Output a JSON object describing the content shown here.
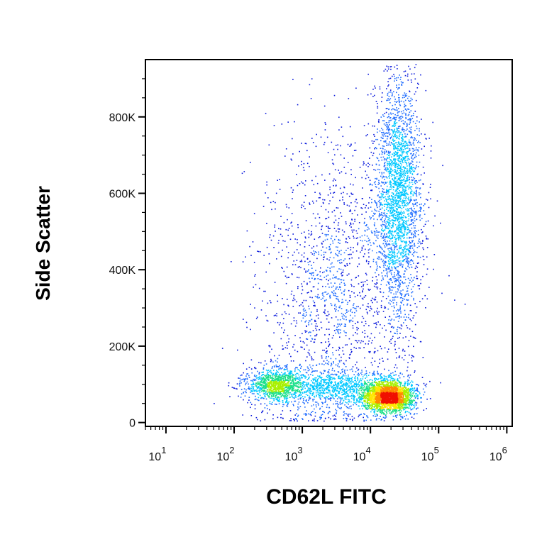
{
  "chart_data": {
    "type": "scatter",
    "subtype": "flow-cytometry-density-dot-plot",
    "xlabel": "CD62L FITC",
    "ylabel": "Side Scatter",
    "x_scale": "log",
    "y_scale": "linear",
    "xlim": [
      5,
      1200000
    ],
    "ylim": [
      -10000,
      950000
    ],
    "x_ticks": [
      {
        "value": 10,
        "base": "10",
        "exp": "1"
      },
      {
        "value": 100,
        "base": "10",
        "exp": "2"
      },
      {
        "value": 1000,
        "base": "10",
        "exp": "3"
      },
      {
        "value": 10000,
        "base": "10",
        "exp": "4"
      },
      {
        "value": 100000,
        "base": "10",
        "exp": "5"
      },
      {
        "value": 1000000,
        "base": "10",
        "exp": "6"
      }
    ],
    "y_ticks": [
      {
        "value": 0,
        "label": "0"
      },
      {
        "value": 200000,
        "label": "200K"
      },
      {
        "value": 400000,
        "label": "400K"
      },
      {
        "value": 600000,
        "label": "600K"
      },
      {
        "value": 800000,
        "label": "800K"
      }
    ],
    "color_scale": [
      "#0a1adc",
      "#1e6cff",
      "#00c8ff",
      "#1be08a",
      "#a8f000",
      "#ffe600",
      "#ff8a00",
      "#f01000"
    ],
    "populations": [
      {
        "name_visible": false,
        "x_center": 18000,
        "y_center": 70000,
        "x_log_spread": 0.18,
        "y_spread": 20000,
        "weight": 0.3
      },
      {
        "name_visible": false,
        "x_center": 400,
        "y_center": 100000,
        "x_log_spread": 0.22,
        "y_spread": 22000,
        "weight": 0.12
      },
      {
        "name_visible": false,
        "x_center": 25000,
        "y_center": 600000,
        "x_log_spread": 0.17,
        "y_spread": 160000,
        "weight": 0.28
      },
      {
        "name_visible": false,
        "x_center": 3000,
        "y_center": 90000,
        "x_log_spread": 0.45,
        "y_spread": 25000,
        "weight": 0.12
      },
      {
        "name_visible": false,
        "x_center": 3000,
        "y_center": 350000,
        "x_log_spread": 0.55,
        "y_spread": 200000,
        "weight": 0.18
      }
    ]
  }
}
